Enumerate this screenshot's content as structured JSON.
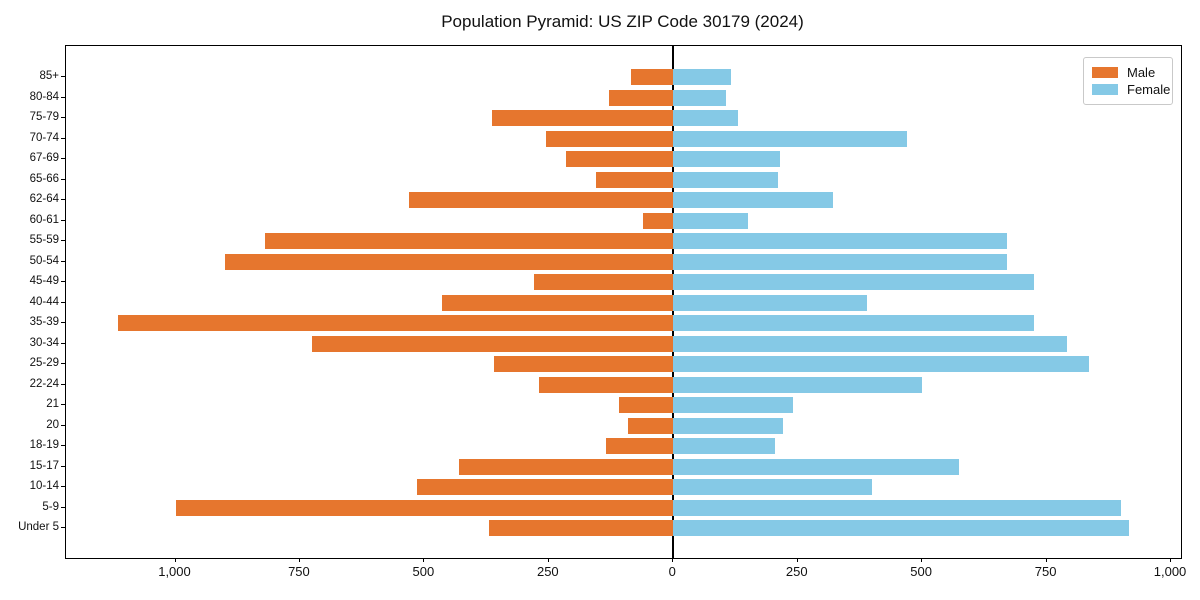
{
  "chart_data": {
    "type": "bar",
    "variant": "population-pyramid-horizontal",
    "title": "Population Pyramid: US ZIP Code 30179 (2024)",
    "categories_top_to_bottom": [
      "85+",
      "80-84",
      "75-79",
      "70-74",
      "67-69",
      "65-66",
      "62-64",
      "60-61",
      "55-59",
      "50-54",
      "45-49",
      "40-44",
      "35-39",
      "30-34",
      "25-29",
      "22-24",
      "21",
      "20",
      "18-19",
      "15-17",
      "10-14",
      "5-9",
      "Under 5"
    ],
    "series": [
      {
        "name": "Male",
        "side": "left",
        "color": "#E6762E",
        "values": [
          85,
          130,
          365,
          255,
          215,
          155,
          530,
          60,
          820,
          900,
          280,
          465,
          1115,
          725,
          360,
          270,
          110,
          90,
          135,
          430,
          515,
          1000,
          370
        ]
      },
      {
        "name": "Female",
        "side": "right",
        "color": "#85C9E6",
        "values": [
          115,
          105,
          130,
          470,
          215,
          210,
          320,
          150,
          670,
          670,
          725,
          390,
          725,
          790,
          835,
          500,
          240,
          220,
          205,
          575,
          400,
          900,
          915
        ]
      }
    ],
    "x_axis": {
      "tick_values": [
        -1000,
        -750,
        -500,
        -250,
        0,
        250,
        500,
        750,
        1000
      ],
      "tick_labels": [
        "1,000",
        "750",
        "500",
        "250",
        "0",
        "250",
        "500",
        "750",
        "1,000"
      ],
      "xlim": [
        -1220,
        1020
      ]
    },
    "y_axis": {
      "label": "",
      "order_note": "85+ at top, Under 5 at bottom"
    },
    "legend": {
      "position": "upper right"
    },
    "grid": false,
    "zero_line": true,
    "xlabel": "",
    "ylabel": ""
  }
}
